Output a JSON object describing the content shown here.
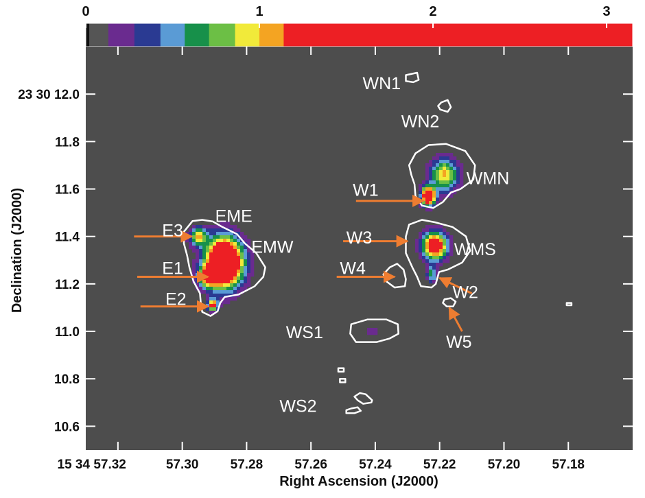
{
  "chart_data": {
    "type": "heatmap",
    "colorbar": {
      "ticks": [
        "0",
        "1",
        "2",
        "3"
      ],
      "tick_values": [
        0,
        1,
        2,
        3
      ],
      "range": [
        0,
        3.15
      ],
      "segments": [
        {
          "from": 0.0,
          "to": 0.02,
          "color": "#111111"
        },
        {
          "from": 0.02,
          "to": 0.13,
          "color": "#555555"
        },
        {
          "from": 0.13,
          "to": 0.28,
          "color": "#6a2b8f"
        },
        {
          "from": 0.28,
          "to": 0.43,
          "color": "#2a3a92"
        },
        {
          "from": 0.43,
          "to": 0.57,
          "color": "#5a9bd5"
        },
        {
          "from": 0.57,
          "to": 0.71,
          "color": "#17904a"
        },
        {
          "from": 0.71,
          "to": 0.86,
          "color": "#6cbf45"
        },
        {
          "from": 0.86,
          "to": 1.0,
          "color": "#f1ea3a"
        },
        {
          "from": 1.0,
          "to": 1.14,
          "color": "#f4a422"
        },
        {
          "from": 1.14,
          "to": 3.15,
          "color": "#ed1f24"
        }
      ]
    },
    "xlabel": "Right Ascension (J2000)",
    "ylabel": "Declination (J2000)",
    "x_range": [
      57.33,
      57.16
    ],
    "y_range": [
      10.5,
      12.2
    ],
    "x_ticks": [
      "15 34 57.32",
      "57.30",
      "57.28",
      "57.26",
      "57.24",
      "57.22",
      "57.20",
      "57.18"
    ],
    "x_tick_values": [
      57.32,
      57.3,
      57.28,
      57.26,
      57.24,
      57.22,
      57.2,
      57.18
    ],
    "y_ticks": [
      "23 30 12.0",
      "11.8",
      "11.6",
      "11.4",
      "11.2",
      "11.0",
      "10.8",
      "10.6"
    ],
    "y_tick_values": [
      12.0,
      11.8,
      11.6,
      11.4,
      11.2,
      11.0,
      10.8,
      10.6
    ],
    "source_labels": [
      {
        "text": "WN1",
        "ra": 57.238,
        "dec": 12.04
      },
      {
        "text": "WN2",
        "ra": 57.226,
        "dec": 11.88
      },
      {
        "text": "WMN",
        "ra": 57.205,
        "dec": 11.64
      },
      {
        "text": "W1",
        "ra": 57.243,
        "dec": 11.59
      },
      {
        "text": "EME",
        "ra": 57.284,
        "dec": 11.48
      },
      {
        "text": "E3",
        "ra": 57.303,
        "dec": 11.42
      },
      {
        "text": "W3",
        "ra": 57.245,
        "dec": 11.39
      },
      {
        "text": "EMW",
        "ra": 57.272,
        "dec": 11.35
      },
      {
        "text": "WMS",
        "ra": 57.209,
        "dec": 11.34
      },
      {
        "text": "E1",
        "ra": 57.303,
        "dec": 11.26
      },
      {
        "text": "W4",
        "ra": 57.247,
        "dec": 11.26
      },
      {
        "text": "W2",
        "ra": 57.212,
        "dec": 11.16
      },
      {
        "text": "E2",
        "ra": 57.302,
        "dec": 11.13
      },
      {
        "text": "W5",
        "ra": 57.214,
        "dec": 10.95
      },
      {
        "text": "WS1",
        "ra": 57.262,
        "dec": 10.99
      },
      {
        "text": "WS2",
        "ra": 57.264,
        "dec": 10.68
      }
    ],
    "arrows": [
      {
        "name": "E3",
        "from": [
          57.315,
          11.4
        ],
        "to": [
          57.297,
          11.4
        ]
      },
      {
        "name": "E1",
        "from": [
          57.314,
          11.23
        ],
        "to": [
          57.292,
          11.23
        ]
      },
      {
        "name": "E2",
        "from": [
          57.313,
          11.105
        ],
        "to": [
          57.292,
          11.105
        ]
      },
      {
        "name": "W1",
        "from": [
          57.246,
          11.55
        ],
        "to": [
          57.225,
          11.55
        ]
      },
      {
        "name": "W3",
        "from": [
          57.25,
          11.38
        ],
        "to": [
          57.23,
          11.38
        ]
      },
      {
        "name": "W4",
        "from": [
          57.252,
          11.23
        ],
        "to": [
          57.234,
          11.23
        ]
      },
      {
        "name": "W2",
        "from": [
          57.21,
          11.16
        ],
        "to": [
          57.22,
          11.225
        ]
      },
      {
        "name": "W5",
        "from": [
          57.213,
          11.0
        ],
        "to": [
          57.217,
          11.1
        ]
      }
    ],
    "sources": [
      {
        "name": "EMW",
        "ra": 57.287,
        "dec": 11.29,
        "peak": 2.4,
        "rx": 0.0058,
        "ry": 0.105
      },
      {
        "name": "E3",
        "ra": 57.295,
        "dec": 11.4,
        "peak": 0.95,
        "rx": 0.0028,
        "ry": 0.04
      },
      {
        "name": "E1",
        "ra": 57.292,
        "dec": 11.23,
        "peak": 1.0,
        "rx": 0.003,
        "ry": 0.045
      },
      {
        "name": "E2",
        "ra": 57.2905,
        "dec": 11.11,
        "peak": 1.4,
        "rx": 0.0016,
        "ry": 0.025
      },
      {
        "name": "WMN",
        "ra": 57.2185,
        "dec": 11.66,
        "peak": 1.05,
        "rx": 0.0045,
        "ry": 0.07
      },
      {
        "name": "W1",
        "ra": 57.2235,
        "dec": 11.57,
        "peak": 2.0,
        "rx": 0.0022,
        "ry": 0.04
      },
      {
        "name": "WMS",
        "ra": 57.2215,
        "dec": 11.36,
        "peak": 1.6,
        "rx": 0.004,
        "ry": 0.06
      },
      {
        "name": "W2",
        "ra": 57.2225,
        "dec": 11.24,
        "peak": 0.7,
        "rx": 0.0015,
        "ry": 0.035
      },
      {
        "name": "WS1",
        "ra": 57.2405,
        "dec": 11.0,
        "peak": 0.2,
        "rx": 0.003,
        "ry": 0.035
      }
    ],
    "contours": [
      {
        "name": "east",
        "points": [
          [
            57.2968,
            11.465
          ],
          [
            57.2938,
            11.47
          ],
          [
            57.2905,
            11.463
          ],
          [
            57.2875,
            11.44
          ],
          [
            57.283,
            11.41
          ],
          [
            57.2805,
            11.37
          ],
          [
            57.277,
            11.33
          ],
          [
            57.2742,
            11.27
          ],
          [
            57.2748,
            11.23
          ],
          [
            57.2775,
            11.19
          ],
          [
            57.2825,
            11.155
          ],
          [
            57.2868,
            11.145
          ],
          [
            57.2882,
            11.12
          ],
          [
            57.289,
            11.085
          ],
          [
            57.2912,
            11.065
          ],
          [
            57.2938,
            11.082
          ],
          [
            57.2942,
            11.115
          ],
          [
            57.2945,
            11.16
          ],
          [
            57.2965,
            11.21
          ],
          [
            57.2978,
            11.27
          ],
          [
            57.2985,
            11.32
          ],
          [
            57.2995,
            11.37
          ],
          [
            57.2995,
            11.42
          ]
        ]
      },
      {
        "name": "wmn",
        "points": [
          [
            57.2295,
            11.7
          ],
          [
            57.2275,
            11.75
          ],
          [
            57.2235,
            11.785
          ],
          [
            57.218,
            11.79
          ],
          [
            57.212,
            11.76
          ],
          [
            57.209,
            11.7
          ],
          [
            57.2095,
            11.64
          ],
          [
            57.2135,
            11.6
          ],
          [
            57.2165,
            11.585
          ],
          [
            57.219,
            11.545
          ],
          [
            57.222,
            11.52
          ],
          [
            57.2255,
            11.53
          ],
          [
            57.2275,
            11.57
          ],
          [
            57.2278,
            11.62
          ],
          [
            57.2288,
            11.66
          ]
        ]
      },
      {
        "name": "wms",
        "points": [
          [
            57.2295,
            11.45
          ],
          [
            57.2255,
            11.47
          ],
          [
            57.2215,
            11.46
          ],
          [
            57.216,
            11.44
          ],
          [
            57.2118,
            11.4
          ],
          [
            57.2105,
            11.34
          ],
          [
            57.213,
            11.29
          ],
          [
            57.2175,
            11.26
          ],
          [
            57.2202,
            11.25
          ],
          [
            57.2212,
            11.2
          ],
          [
            57.2225,
            11.185
          ],
          [
            57.2258,
            11.19
          ],
          [
            57.227,
            11.23
          ],
          [
            57.2285,
            11.27
          ],
          [
            57.2305,
            11.33
          ],
          [
            57.2305,
            11.4
          ]
        ]
      },
      {
        "name": "w4",
        "points": [
          [
            57.2355,
            11.27
          ],
          [
            57.2332,
            11.285
          ],
          [
            57.2312,
            11.26
          ],
          [
            57.2305,
            11.22
          ],
          [
            57.2308,
            11.19
          ],
          [
            57.234,
            11.185
          ],
          [
            57.2365,
            11.21
          ],
          [
            57.2375,
            11.24
          ]
        ]
      },
      {
        "name": "ws1",
        "points": [
          [
            57.2475,
            11.03
          ],
          [
            57.2425,
            11.05
          ],
          [
            57.2365,
            11.05
          ],
          [
            57.233,
            11.03
          ],
          [
            57.2328,
            10.99
          ],
          [
            57.2355,
            10.97
          ],
          [
            57.2395,
            10.955
          ],
          [
            57.246,
            10.955
          ],
          [
            57.2478,
            10.99
          ]
        ]
      },
      {
        "name": "wn1",
        "points": [
          [
            57.2305,
            12.08
          ],
          [
            57.227,
            12.09
          ],
          [
            57.2265,
            12.06
          ],
          [
            57.2282,
            12.05
          ],
          [
            57.2305,
            12.055
          ]
        ]
      },
      {
        "name": "wn2",
        "points": [
          [
            57.2195,
            11.965
          ],
          [
            57.2175,
            11.975
          ],
          [
            57.2165,
            11.945
          ],
          [
            57.2175,
            11.925
          ],
          [
            57.2198,
            11.935
          ],
          [
            57.2205,
            11.95
          ]
        ]
      },
      {
        "name": "w5",
        "points": [
          [
            57.2185,
            11.135
          ],
          [
            57.2165,
            11.14
          ],
          [
            57.215,
            11.125
          ],
          [
            57.2158,
            11.105
          ],
          [
            57.2178,
            11.105
          ],
          [
            57.219,
            11.12
          ]
        ]
      },
      {
        "name": "far-east",
        "points": [
          [
            57.1805,
            11.12
          ],
          [
            57.179,
            11.12
          ],
          [
            57.179,
            11.11
          ],
          [
            57.1805,
            11.11
          ]
        ]
      },
      {
        "name": "ws2-a",
        "points": [
          [
            57.2515,
            10.845
          ],
          [
            57.2498,
            10.845
          ],
          [
            57.2498,
            10.83
          ],
          [
            57.2515,
            10.83
          ]
        ]
      },
      {
        "name": "ws2-b",
        "points": [
          [
            57.251,
            10.8
          ],
          [
            57.2493,
            10.8
          ],
          [
            57.2493,
            10.785
          ],
          [
            57.251,
            10.785
          ]
        ]
      },
      {
        "name": "ws2-c",
        "points": [
          [
            57.2448,
            10.74
          ],
          [
            57.243,
            10.735
          ],
          [
            57.241,
            10.71
          ],
          [
            57.2412,
            10.7
          ],
          [
            57.2438,
            10.695
          ],
          [
            57.2455,
            10.71
          ],
          [
            57.2465,
            10.725
          ]
        ]
      },
      {
        "name": "ws2-d",
        "points": [
          [
            57.2475,
            10.675
          ],
          [
            57.2455,
            10.68
          ],
          [
            57.2445,
            10.665
          ],
          [
            57.2465,
            10.655
          ],
          [
            57.249,
            10.655
          ],
          [
            57.249,
            10.668
          ]
        ]
      }
    ]
  }
}
